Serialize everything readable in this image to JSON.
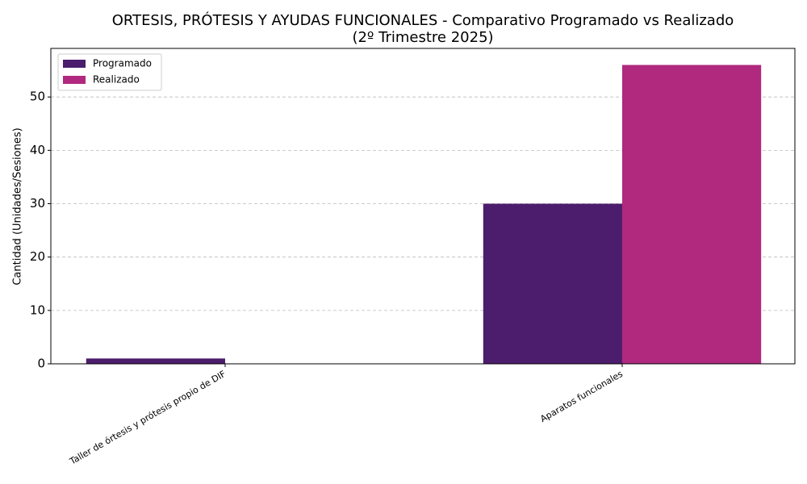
{
  "chart_data": {
    "type": "bar",
    "title": [
      "ORTESIS, PRÓTESIS Y AYUDAS FUNCIONALES - Comparativo Programado vs Realizado",
      "(2º Trimestre 2025)"
    ],
    "y_label": "Cantidad (Unidades/Sesiones)",
    "categories": [
      "Taller de órtesis y prótesis propio de DIF",
      "Aparatos funcionales"
    ],
    "series": [
      {
        "name": "Programado",
        "color": "#4b1d6c",
        "values": [
          1,
          30
        ]
      },
      {
        "name": "Realizado",
        "color": "#b0297e",
        "values": [
          0,
          56
        ]
      }
    ],
    "ylim": [
      0,
      59.1
    ],
    "yticks": [
      0,
      10,
      20,
      30,
      40,
      50
    ],
    "grid": true,
    "legend": "upper left"
  }
}
